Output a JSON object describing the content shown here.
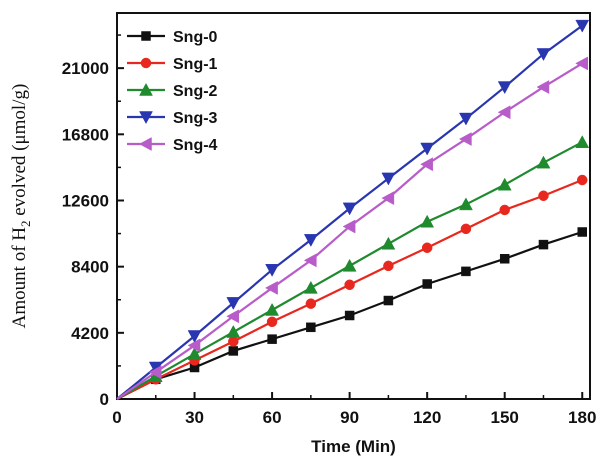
{
  "chart_data": {
    "type": "line",
    "xlabel": "Time (Min)",
    "ylabel": "Amount of H2 evolved (μmol/g)",
    "ylabel_parts": {
      "before": "Amount of H",
      "sub": "2",
      "after": " evolved (μmol/g)"
    },
    "xlim": [
      0,
      183
    ],
    "ylim": [
      0,
      24500
    ],
    "x_ticks": [
      0,
      30,
      60,
      90,
      120,
      150,
      180
    ],
    "x_tick_labels": [
      "0",
      "30",
      "60",
      "90",
      "120",
      "150",
      "180"
    ],
    "y_ticks": [
      0,
      4200,
      8400,
      12600,
      16800,
      21000
    ],
    "y_tick_labels": [
      "0",
      "4200",
      "8400",
      "12600",
      "16800",
      "21000"
    ],
    "legend_position": "top-left",
    "x": [
      0,
      15,
      30,
      45,
      60,
      75,
      90,
      105,
      120,
      135,
      150,
      165,
      180
    ],
    "series": [
      {
        "name": "Sng-0",
        "color": "#111111",
        "marker": "square",
        "values": [
          0,
          1250,
          2000,
          3050,
          3800,
          4550,
          5300,
          6250,
          7300,
          8100,
          8900,
          9800,
          10600
        ]
      },
      {
        "name": "Sng-1",
        "color": "#e8281e",
        "marker": "circle",
        "values": [
          0,
          1250,
          2450,
          3650,
          4900,
          6050,
          7250,
          8450,
          9600,
          10800,
          12000,
          12900,
          13900
        ]
      },
      {
        "name": "Sng-2",
        "color": "#1f8a2e",
        "marker": "triangle-up",
        "values": [
          0,
          1450,
          2850,
          4250,
          5650,
          7050,
          8450,
          9850,
          11250,
          12350,
          13600,
          15000,
          16300
        ]
      },
      {
        "name": "Sng-3",
        "color": "#2836b0",
        "marker": "triangle-down",
        "values": [
          0,
          2000,
          4000,
          6100,
          8200,
          10100,
          12100,
          14000,
          15900,
          17800,
          19800,
          21900,
          23700
        ]
      },
      {
        "name": "Sng-4",
        "color": "#b85cc9",
        "marker": "triangle-left",
        "values": [
          0,
          1700,
          3400,
          5250,
          7050,
          8800,
          10950,
          12750,
          14900,
          16500,
          18200,
          19800,
          21300
        ]
      }
    ]
  }
}
